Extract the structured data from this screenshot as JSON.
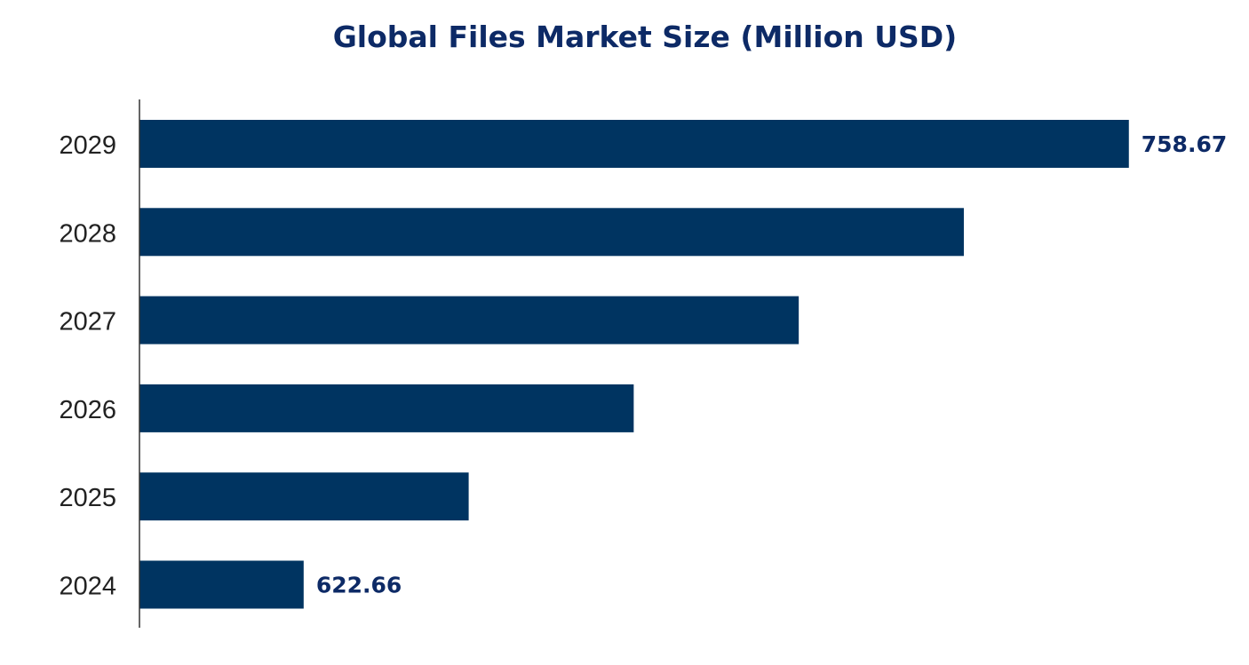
{
  "chart_data": {
    "type": "bar",
    "orientation": "horizontal",
    "title": "Global Files Market Size (Million USD)",
    "categories": [
      "2024",
      "2025",
      "2026",
      "2027",
      "2028",
      "2029"
    ],
    "values": [
      622.66,
      649.86,
      677.06,
      704.26,
      731.47,
      758.67
    ],
    "data_labels": {
      "2024": "622.66",
      "2029": "758.67"
    },
    "xlim": [
      595.6,
      775
    ],
    "xlabel": "",
    "ylabel": "",
    "grid": false,
    "colors": {
      "bar": "#003461",
      "title": "#0d2a66",
      "label": "#0d2a66",
      "tick": "#222222"
    }
  }
}
